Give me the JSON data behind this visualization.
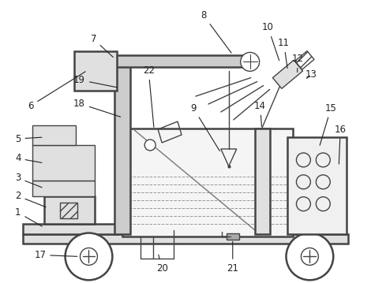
{
  "bg_color": "#ffffff",
  "line_color": "#444444",
  "line_width": 1.0,
  "thick_line": 1.8,
  "label_color": "#222222",
  "label_fontsize": 8.5,
  "fig_width": 4.7,
  "fig_height": 3.59
}
